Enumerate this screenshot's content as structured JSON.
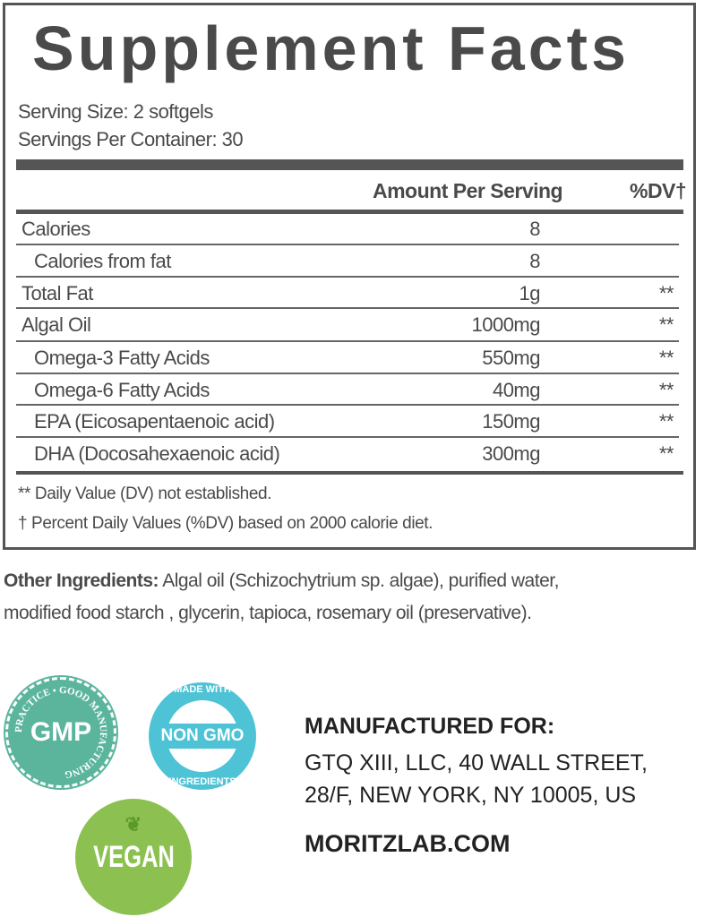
{
  "title": "Supplement Facts",
  "serving_size": "Serving Size: 2 softgels",
  "servings_per_container": "Servings Per Container: 30",
  "headers": {
    "amount": "Amount Per Serving",
    "dv": "%DV†"
  },
  "rows": [
    {
      "name": "Calories",
      "amount": "8",
      "dv": ""
    },
    {
      "name": "Calories from fat",
      "amount": "8",
      "dv": ""
    },
    {
      "name": "Total Fat",
      "amount": "1g",
      "dv": "**"
    },
    {
      "name": "Algal Oil",
      "amount": "1000mg",
      "dv": "**"
    },
    {
      "name": "Omega-3 Fatty Acids",
      "amount": "550mg",
      "dv": "**"
    },
    {
      "name": "Omega-6 Fatty Acids",
      "amount": "40mg",
      "dv": "**"
    },
    {
      "name": "EPA (Eicosapentaenoic acid)",
      "amount": "150mg",
      "dv": "**"
    },
    {
      "name": "DHA (Docosahexaenoic acid)",
      "amount": "300mg",
      "dv": "**"
    }
  ],
  "footnotes": [
    "** Daily Value (DV) not established.",
    "† Percent Daily Values (%DV) based on 2000 calorie diet."
  ],
  "other_ingredients": {
    "label": "Other Ingredients:",
    "line1": " Algal oil (Schizochytrium sp. algae), purified water,",
    "line2": "modified food starch , glycerin, tapioca, rosemary oil (preservative)."
  },
  "badges": {
    "gmp": {
      "text": "GMP",
      "ring": "PRACTICE • GOOD MANUFACTURING",
      "color": "#5bb59d"
    },
    "nongmo": {
      "text": "NON GMO",
      "top": "MADE WITH",
      "bottom": "INGREDIENTS",
      "color": "#4fc3d6"
    },
    "vegan": {
      "text": "VEGAN",
      "color": "#8cc152"
    }
  },
  "manufacturer": {
    "heading": "MANUFACTURED FOR:",
    "line1": "GTQ XIII, LLC, 40 WALL STREET,",
    "line2": "28/F, NEW YORK, NY 10005, US",
    "website": "MORITZLAB.COM"
  }
}
